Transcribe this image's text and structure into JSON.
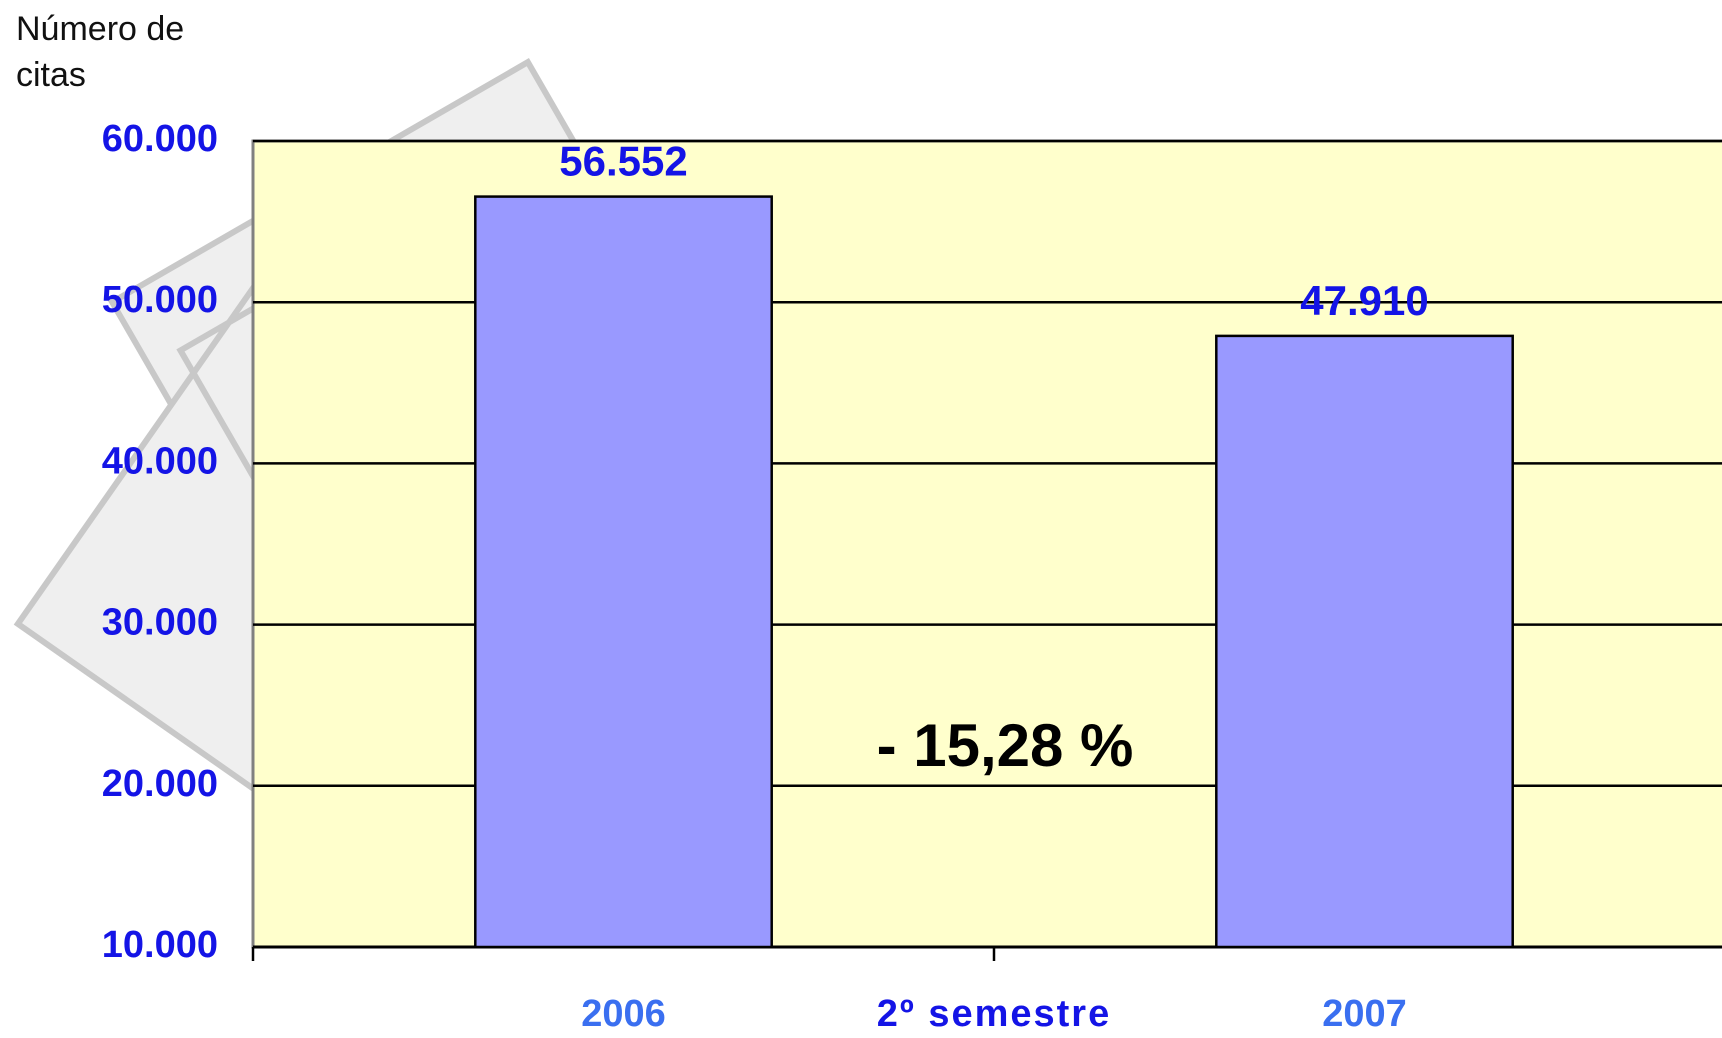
{
  "chart_data": {
    "type": "bar",
    "y_axis_title": "Número de citas",
    "x_axis_title": "2º semestre",
    "annotation": "- 15,28 %",
    "categories": [
      "2006",
      "2007"
    ],
    "values": [
      56552,
      47910
    ],
    "value_labels": [
      "56.552",
      "47.910"
    ],
    "color": "#9999ff",
    "background": "#ffffcc",
    "ylim": [
      10000,
      60000
    ],
    "yticks": [
      {
        "value": 10000,
        "label": "10.000"
      },
      {
        "value": 20000,
        "label": "20.000"
      },
      {
        "value": 30000,
        "label": "30.000"
      },
      {
        "value": 40000,
        "label": "40.000"
      },
      {
        "value": 50000,
        "label": "50.000"
      },
      {
        "value": 60000,
        "label": "60.000"
      }
    ],
    "grid": true
  }
}
